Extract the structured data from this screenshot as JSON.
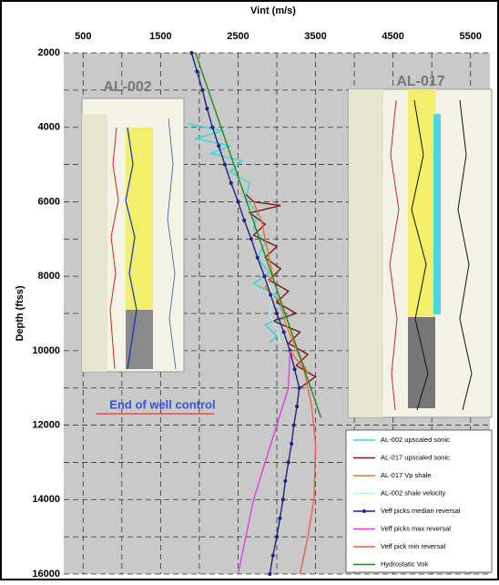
{
  "chart_data": {
    "type": "line",
    "x_label": "Vint (m/s)",
    "y_label": "Depth (ftss)",
    "xlim": [
      250,
      5750
    ],
    "xticks": [
      500,
      1500,
      2500,
      3500,
      4500,
      5500
    ],
    "x_grid": [
      1000,
      2000,
      3000,
      4000,
      5000
    ],
    "ylim": [
      16000,
      2000
    ],
    "yticks": [
      2000,
      4000,
      6000,
      8000,
      10000,
      12000,
      14000,
      16000
    ],
    "y_grid": [
      3000,
      5000,
      7000,
      9000,
      11000,
      13000,
      15000
    ],
    "grid": true,
    "legend": "lower right",
    "inset_labels": [
      "AL-002",
      "AL-017"
    ],
    "annotation": {
      "text": "End of well control",
      "x": 900,
      "y": 11550,
      "color": "#3355dd"
    },
    "series": [
      {
        "name": "AL-002 upscaled sonic",
        "color": "#33d6e0",
        "x": [
          1850,
          2300,
          1950,
          2400,
          2150,
          2550,
          2400,
          2650,
          2600,
          2750,
          2700,
          2850,
          2750,
          2900,
          2700,
          3000,
          3050,
          3150,
          2850,
          3000,
          2900
        ],
        "y": [
          3900,
          4100,
          4300,
          4500,
          4700,
          4900,
          5200,
          5500,
          5900,
          6300,
          6700,
          7100,
          7500,
          7900,
          8200,
          8500,
          8900,
          9100,
          9300,
          9600,
          9800
        ]
      },
      {
        "name": "AL-017 upscaled sonic",
        "color": "#7a1a1a",
        "x": [
          2600,
          2700,
          3050,
          2650,
          2850,
          2700,
          3000,
          2850,
          3050,
          2900,
          3150,
          3000,
          3250,
          2950,
          3300,
          3150,
          3400,
          3250,
          3500,
          3300
        ],
        "y": [
          5800,
          6000,
          6100,
          6300,
          6600,
          6900,
          7200,
          7500,
          7800,
          8100,
          8400,
          8700,
          9000,
          9200,
          9500,
          9800,
          10100,
          10400,
          10700,
          11000
        ]
      },
      {
        "name": "AL-017 Vp shale",
        "color": "#e8761a",
        "x": [
          2700,
          2800,
          2850,
          2900,
          2950,
          2850,
          3050,
          3100,
          3200,
          3300,
          3400
        ],
        "y": [
          6000,
          6500,
          7000,
          7500,
          8000,
          8300,
          8700,
          9200,
          9700,
          10200,
          10600
        ]
      },
      {
        "name": "AL-002 shale velocity",
        "color": "#aef0f0",
        "x": [
          2850,
          2950,
          2900,
          3000,
          3050
        ],
        "y": [
          8000,
          8500,
          9000,
          9400,
          9800
        ]
      },
      {
        "name": "Veff picks median reversal",
        "color": "#1a237e",
        "markers": true,
        "x": [
          1900,
          1970,
          2040,
          2100,
          2170,
          2250,
          2330,
          2410,
          2500,
          2580,
          2670,
          2750,
          2840,
          2920,
          3000,
          3090,
          3170,
          3230,
          3290,
          3260,
          3220,
          3190,
          3150,
          3110,
          3080,
          3040,
          3000,
          2950,
          2910
        ],
        "y": [
          2000,
          2500,
          3000,
          3500,
          4000,
          4500,
          5000,
          5500,
          6000,
          6500,
          7000,
          7500,
          8000,
          8500,
          9000,
          9500,
          10000,
          10500,
          11000,
          11500,
          12000,
          12500,
          13000,
          13500,
          14000,
          14500,
          15000,
          15500,
          16000
        ]
      },
      {
        "name": "Veff picks max reversal",
        "color": "#e040e0",
        "x": [
          3170,
          3150,
          3000,
          2850,
          2700,
          2600,
          2500
        ],
        "y": [
          10000,
          11000,
          12000,
          13000,
          14000,
          15000,
          16000
        ]
      },
      {
        "name": "Veff pick min reversal",
        "color": "#f06050",
        "x": [
          3170,
          3350,
          3450,
          3500,
          3480,
          3400,
          3300
        ],
        "y": [
          10000,
          10500,
          11500,
          12500,
          14000,
          15000,
          16000
        ]
      },
      {
        "name": "Hydrostatic Vok",
        "color": "#1f8a1f",
        "x": [
          1950,
          3570
        ],
        "y": [
          2000,
          11800
        ]
      }
    ]
  }
}
